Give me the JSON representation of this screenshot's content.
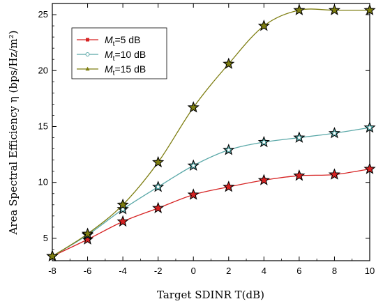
{
  "chart_data": {
    "type": "line",
    "title": "",
    "xlabel": "Target SDINR T(dB)",
    "ylabel": "Area Spectral Efficiency η (bps/Hz/m²)",
    "xlim": [
      -8,
      10
    ],
    "ylim": [
      3,
      26
    ],
    "xticks": [
      -8,
      -6,
      -4,
      -2,
      0,
      2,
      4,
      6,
      8,
      10
    ],
    "yticks": [
      5,
      10,
      15,
      20,
      25
    ],
    "grid": false,
    "legend_position": "upper-left",
    "x": [
      -8,
      -6,
      -4,
      -2,
      0,
      2,
      4,
      6,
      8,
      10
    ],
    "series": [
      {
        "name": "Mt=5 dB",
        "label_main": "M",
        "label_sub": "t",
        "label_rest": "=5 dB",
        "color": "#d62222",
        "marker": "square",
        "values": [
          3.4,
          4.9,
          6.5,
          7.7,
          8.9,
          9.6,
          10.2,
          10.6,
          10.7,
          11.2
        ]
      },
      {
        "name": "Mt=10 dB",
        "label_main": "M",
        "label_sub": "t",
        "label_rest": "=10 dB",
        "color": "#5aa8a8",
        "marker": "circle",
        "values": [
          3.4,
          5.3,
          7.6,
          9.6,
          11.5,
          12.9,
          13.6,
          14.0,
          14.4,
          14.9
        ]
      },
      {
        "name": "Mt=15 dB",
        "label_main": "M",
        "label_sub": "t",
        "label_rest": "=15 dB",
        "color": "#7d7d10",
        "marker": "triangle",
        "values": [
          3.4,
          5.4,
          8.0,
          11.8,
          16.7,
          20.6,
          24.0,
          25.4,
          25.4,
          25.4
        ]
      }
    ],
    "overlay_marker": "star"
  }
}
